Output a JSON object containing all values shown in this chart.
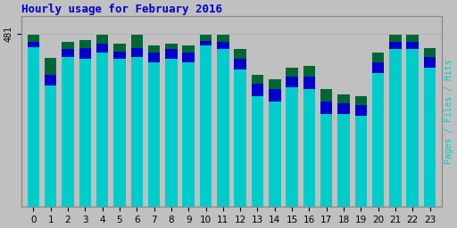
{
  "title": "Hourly usage for February 2016",
  "title_color": "#0000cc",
  "background_color": "#c0c0c0",
  "plot_bg_color": "#c0c0c0",
  "ylabel_right": "Pages / Files / Hits",
  "ylabel_right_color": "#00cccc",
  "hours": [
    0,
    1,
    2,
    3,
    4,
    5,
    6,
    7,
    8,
    9,
    10,
    11,
    12,
    13,
    14,
    15,
    16,
    17,
    18,
    19,
    20,
    21,
    22,
    23
  ],
  "hits": [
    480,
    415,
    458,
    463,
    478,
    453,
    478,
    450,
    453,
    450,
    480,
    480,
    438,
    368,
    355,
    388,
    392,
    328,
    312,
    308,
    428,
    480,
    480,
    442
  ],
  "files": [
    458,
    368,
    438,
    442,
    455,
    432,
    442,
    428,
    438,
    430,
    462,
    460,
    412,
    342,
    328,
    362,
    362,
    292,
    288,
    282,
    402,
    460,
    460,
    418
  ],
  "pages": [
    445,
    338,
    418,
    412,
    428,
    412,
    418,
    402,
    412,
    402,
    448,
    438,
    382,
    308,
    292,
    332,
    328,
    258,
    258,
    252,
    372,
    438,
    438,
    388
  ],
  "hits_color": "#006633",
  "files_color": "#0000cc",
  "pages_color": "#00cccc",
  "bar_width": 0.7,
  "ylim_max": 530,
  "ytick_label": "481",
  "ytick_value": 481,
  "grid_color": "#aaaaaa",
  "spine_color": "#888888"
}
